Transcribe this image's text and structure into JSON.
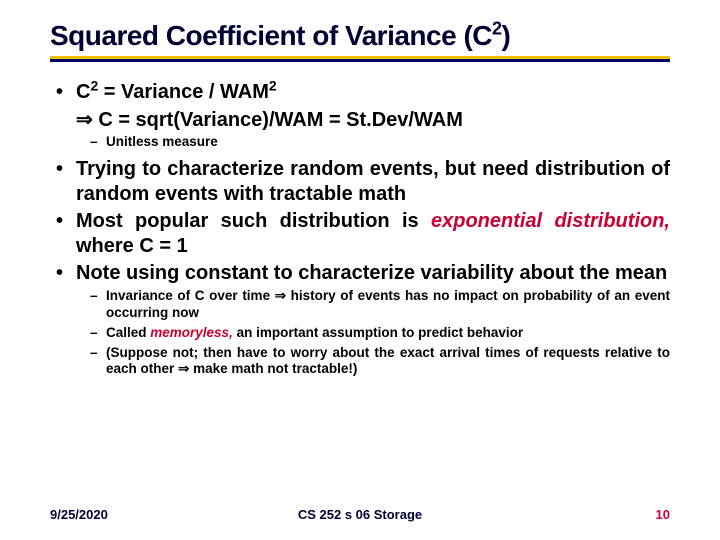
{
  "title_pre": "Squared Coefficient of Variance (C",
  "title_sup": "2",
  "title_post": ")",
  "b1_a": "C",
  "b1_sup1": "2",
  "b1_b": " = Variance / WAM",
  "b1_sup2": "2",
  "b1_line2_arrow": "⇒",
  "b1_line2": " C = sqrt(Variance)/WAM = St.Dev/WAM",
  "d1": "Unitless measure",
  "b2": "Trying to characterize random events, but need distribution of random events with tractable math",
  "b3_a": "Most popular such distribution is ",
  "b3_red": "exponential distribution,",
  "b3_b": " where C = 1",
  "b4": "Note using constant to characterize variability about the mean",
  "d2_a": "Invariance of C over time ",
  "d2_arrow": "⇒",
  "d2_b": " history of events has no impact on probability of an event occurring now",
  "d3_a": "Called ",
  "d3_red": "memoryless,",
  "d3_b": " an important assumption to predict behavior",
  "d4_a": "(Suppose not; then have to worry about the exact arrival times of requests relative to each other ",
  "d4_arrow": "⇒",
  "d4_b": " make math not tractable!)",
  "footer_date": "9/25/2020",
  "footer_center": "CS 252 s 06 Storage",
  "footer_page": "10"
}
